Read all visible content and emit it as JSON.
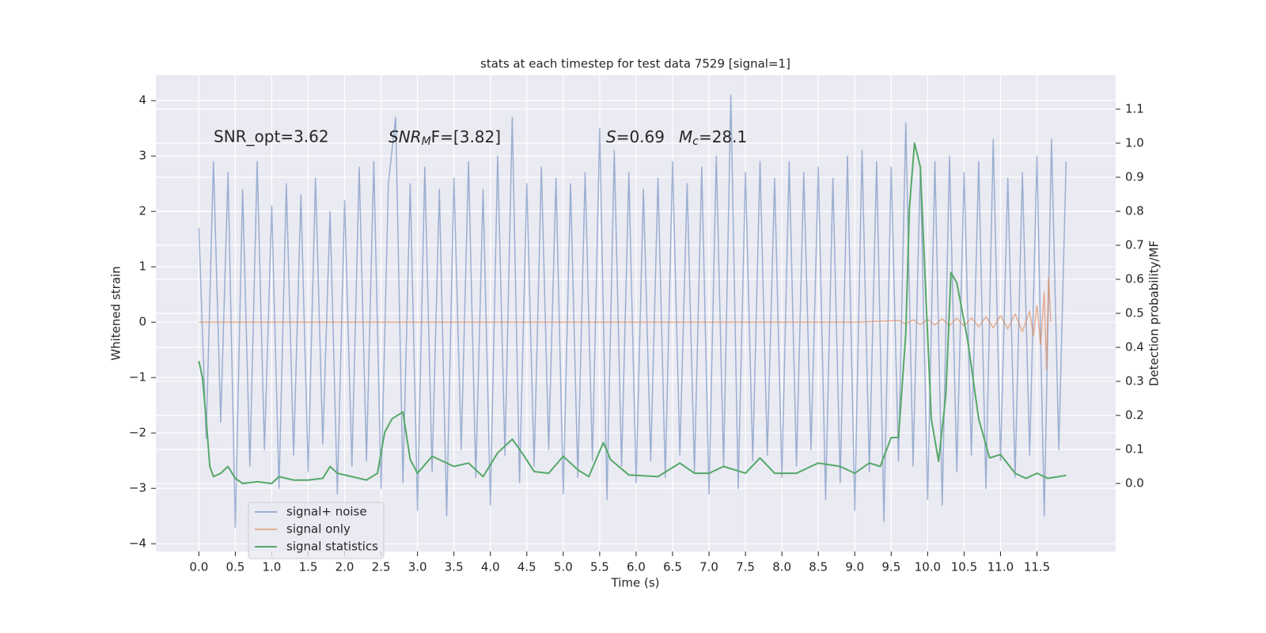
{
  "chart_data": {
    "type": "line",
    "title": "stats at each timestep for test data 7529 [signal=1]",
    "xlabel": "Time (s)",
    "ylabel": "Whitened strain",
    "y2label": "Detection probability/MF",
    "annotations": [
      "SNR_opt=3.62",
      {
        "main": "SNR",
        "sub": "M",
        "rest": "F=[3.82]"
      },
      {
        "main": "S",
        "rest": "=0.69"
      },
      {
        "main": "M",
        "sub": "c",
        "rest": "=28.1"
      }
    ],
    "xlim": [
      -0.59,
      12.58
    ],
    "ylim": [
      -4.14,
      4.46
    ],
    "y2lim": [
      -0.2,
      1.2
    ],
    "grid": true,
    "xticks": [
      {
        "value": 0,
        "label": "0.0"
      },
      {
        "value": 0.5,
        "label": "0.5"
      },
      {
        "value": 1,
        "label": "1.0"
      },
      {
        "value": 1.5,
        "label": "1.5"
      },
      {
        "value": 2,
        "label": "2.0"
      },
      {
        "value": 2.5,
        "label": "2.5"
      },
      {
        "value": 3,
        "label": "3.0"
      },
      {
        "value": 3.5,
        "label": "3.5"
      },
      {
        "value": 4,
        "label": "4.0"
      },
      {
        "value": 4.5,
        "label": "4.5"
      },
      {
        "value": 5,
        "label": "5.0"
      },
      {
        "value": 5.5,
        "label": "5.5"
      },
      {
        "value": 6,
        "label": "6.0"
      },
      {
        "value": 6.5,
        "label": "6.5"
      },
      {
        "value": 7,
        "label": "7.0"
      },
      {
        "value": 7.5,
        "label": "7.5"
      },
      {
        "value": 8,
        "label": "8.0"
      },
      {
        "value": 8.5,
        "label": "8.5"
      },
      {
        "value": 9,
        "label": "9.0"
      },
      {
        "value": 9.5,
        "label": "9.5"
      },
      {
        "value": 10,
        "label": "10.0"
      },
      {
        "value": 10.5,
        "label": "10.5"
      },
      {
        "value": 11,
        "label": "11.0"
      },
      {
        "value": 11.5,
        "label": "11.5"
      }
    ],
    "yticks": [
      {
        "value": -4,
        "label": "−4"
      },
      {
        "value": -3,
        "label": "−3"
      },
      {
        "value": -2,
        "label": "−2"
      },
      {
        "value": -1,
        "label": "−1"
      },
      0,
      1,
      2,
      3,
      4
    ],
    "y2ticks": [
      {
        "value": 0,
        "label": "0.0"
      },
      {
        "value": 0.1,
        "label": "0.1"
      },
      {
        "value": 0.2,
        "label": "0.2"
      },
      {
        "value": 0.3,
        "label": "0.3"
      },
      {
        "value": 0.4,
        "label": "0.4"
      },
      {
        "value": 0.5,
        "label": "0.5"
      },
      {
        "value": 0.6,
        "label": "0.6"
      },
      {
        "value": 0.7,
        "label": "0.7"
      },
      {
        "value": 0.8,
        "label": "0.8"
      },
      {
        "value": 0.9,
        "label": "0.9"
      },
      {
        "value": 1.0,
        "label": "1.0"
      },
      {
        "value": 1.1,
        "label": "1.1"
      }
    ],
    "series": [
      {
        "name": "signal+ noise",
        "color": "#4c72b0",
        "opacity": 0.5,
        "x": [
          0,
          0.1,
          0.2,
          0.3,
          0.4,
          0.5,
          0.6,
          0.7,
          0.8,
          0.9,
          1,
          1.1,
          1.2,
          1.3,
          1.4,
          1.5,
          1.6,
          1.7,
          1.8,
          1.9,
          2,
          2.1,
          2.2,
          2.3,
          2.4,
          2.5,
          2.6,
          2.7,
          2.8,
          2.9,
          3,
          3.1,
          3.2,
          3.3,
          3.4,
          3.5,
          3.6,
          3.7,
          3.8,
          3.9,
          4,
          4.1,
          4.2,
          4.3,
          4.4,
          4.5,
          4.6,
          4.7,
          4.8,
          4.9,
          5,
          5.1,
          5.2,
          5.3,
          5.4,
          5.5,
          5.6,
          5.7,
          5.8,
          5.9,
          6,
          6.1,
          6.2,
          6.3,
          6.4,
          6.5,
          6.6,
          6.7,
          6.8,
          6.9,
          7,
          7.1,
          7.2,
          7.3,
          7.4,
          7.5,
          7.6,
          7.7,
          7.8,
          7.9,
          8,
          8.1,
          8.2,
          8.3,
          8.4,
          8.5,
          8.6,
          8.7,
          8.8,
          8.9,
          9,
          9.1,
          9.2,
          9.3,
          9.4,
          9.5,
          9.6,
          9.7,
          9.8,
          9.9,
          10,
          10.1,
          10.2,
          10.3,
          10.4,
          10.5,
          10.6,
          10.7,
          10.8,
          10.9,
          11,
          11.1,
          11.2,
          11.3,
          11.4,
          11.5,
          11.6,
          11.7,
          11.8,
          11.9
        ],
        "values": [
          1.7,
          -2.1,
          2.9,
          -1.8,
          2.7,
          -3.7,
          2.4,
          -2.6,
          2.9,
          -2.3,
          2.1,
          -3.0,
          2.5,
          -2.4,
          2.3,
          -2.7,
          2.6,
          -2.2,
          2.0,
          -3.1,
          2.2,
          -2.6,
          2.8,
          -2.5,
          2.9,
          -3.0,
          2.5,
          3.7,
          -2.9,
          2.5,
          -3.4,
          2.8,
          -2.7,
          2.4,
          -3.5,
          2.6,
          -2.3,
          2.9,
          -2.8,
          2.4,
          -3.3,
          3.0,
          -2.4,
          3.7,
          -2.9,
          2.5,
          -2.6,
          2.8,
          -2.3,
          2.6,
          -3.1,
          2.5,
          -2.8,
          2.7,
          -2.5,
          3.5,
          -3.2,
          3.1,
          -2.6,
          2.7,
          -2.9,
          2.4,
          -2.5,
          2.6,
          -2.8,
          2.9,
          -2.4,
          2.5,
          -2.7,
          2.8,
          -3.1,
          3.0,
          -2.6,
          4.1,
          -3.0,
          2.7,
          -2.5,
          2.9,
          -2.4,
          2.6,
          -2.8,
          2.9,
          -2.6,
          2.7,
          -2.3,
          2.8,
          -3.2,
          2.6,
          -2.9,
          3.0,
          -3.4,
          3.1,
          -2.7,
          2.9,
          -3.6,
          2.8,
          -2.5,
          3.6,
          -2.6,
          2.8,
          -3.2,
          2.9,
          -3.3,
          3.0,
          -2.7,
          2.7,
          -2.4,
          2.9,
          -3.0,
          3.3,
          -2.5,
          2.6,
          -2.8,
          2.7,
          -2.4,
          3.0,
          -3.5,
          3.3,
          -2.3,
          2.9
        ]
      },
      {
        "name": "signal only",
        "color": "#dd8452",
        "opacity": 0.6,
        "x": [
          0,
          9.0,
          9.6,
          9.7,
          9.8,
          9.9,
          10.0,
          10.1,
          10.2,
          10.3,
          10.4,
          10.5,
          10.6,
          10.7,
          10.8,
          10.9,
          11.0,
          11.1,
          11.2,
          11.3,
          11.4,
          11.45,
          11.5,
          11.55,
          11.6,
          11.63,
          11.66,
          11.69
        ],
        "values": [
          0,
          0,
          0.03,
          -0.03,
          0.04,
          -0.04,
          0.05,
          -0.05,
          0.06,
          -0.06,
          0.07,
          -0.07,
          0.08,
          -0.08,
          0.1,
          -0.1,
          0.12,
          -0.12,
          0.15,
          -0.17,
          0.2,
          -0.25,
          0.3,
          -0.4,
          0.55,
          -0.85,
          0.8,
          0
        ]
      },
      {
        "name": "signal statistics",
        "color": "#55a868",
        "axis": "y2",
        "x": [
          0,
          0.05,
          0.1,
          0.15,
          0.2,
          0.3,
          0.4,
          0.5,
          0.6,
          0.8,
          1.0,
          1.1,
          1.3,
          1.5,
          1.7,
          1.8,
          1.9,
          2.1,
          2.3,
          2.45,
          2.55,
          2.65,
          2.8,
          2.9,
          3.0,
          3.2,
          3.5,
          3.7,
          3.9,
          4.1,
          4.3,
          4.45,
          4.6,
          4.8,
          5.0,
          5.2,
          5.35,
          5.55,
          5.65,
          5.9,
          6.3,
          6.6,
          6.8,
          7.0,
          7.2,
          7.5,
          7.7,
          7.9,
          8.2,
          8.5,
          8.8,
          9.0,
          9.2,
          9.35,
          9.5,
          9.6,
          9.7,
          9.75,
          9.82,
          9.9,
          9.95,
          10.05,
          10.15,
          10.25,
          10.32,
          10.4,
          10.55,
          10.7,
          10.85,
          11.0,
          11.2,
          11.35,
          11.5,
          11.65,
          11.8,
          11.9
        ],
        "values": [
          0.36,
          0.31,
          0.19,
          0.05,
          0.02,
          0.03,
          0.05,
          0.015,
          0.0,
          0.005,
          0.0,
          0.02,
          0.01,
          0.01,
          0.015,
          0.05,
          0.03,
          0.02,
          0.01,
          0.03,
          0.15,
          0.19,
          0.21,
          0.07,
          0.03,
          0.08,
          0.05,
          0.06,
          0.02,
          0.09,
          0.13,
          0.085,
          0.035,
          0.03,
          0.08,
          0.04,
          0.02,
          0.12,
          0.07,
          0.025,
          0.02,
          0.06,
          0.03,
          0.03,
          0.05,
          0.03,
          0.075,
          0.03,
          0.03,
          0.06,
          0.05,
          0.03,
          0.06,
          0.05,
          0.135,
          0.135,
          0.44,
          0.81,
          1.0,
          0.93,
          0.68,
          0.19,
          0.065,
          0.26,
          0.62,
          0.59,
          0.42,
          0.19,
          0.075,
          0.085,
          0.03,
          0.015,
          0.03,
          0.015,
          0.02,
          0.024
        ]
      }
    ]
  }
}
